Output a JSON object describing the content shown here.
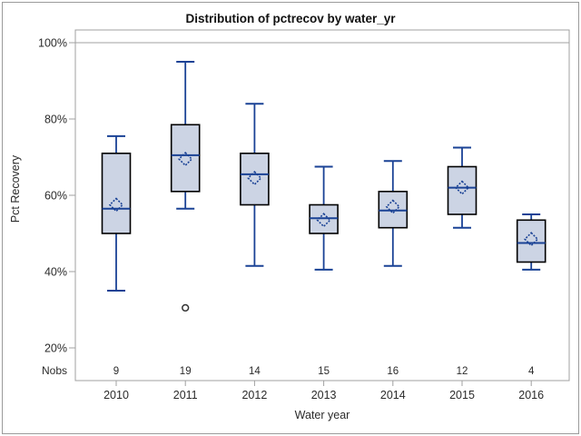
{
  "title": "Distribution of pctrecov by water_yr",
  "chart_data": {
    "type": "boxplot",
    "title": "Distribution of pctrecov by water_yr",
    "xlabel": "Water year",
    "ylabel": "Pct Recovery",
    "nobs_label": "Nobs",
    "y_ticks": [
      {
        "value": 100,
        "label": "100%"
      },
      {
        "value": 80,
        "label": "80%"
      },
      {
        "value": 60,
        "label": "60%"
      },
      {
        "value": 40,
        "label": "40%"
      },
      {
        "value": 20,
        "label": "20%"
      }
    ],
    "ylim": [
      12,
      103
    ],
    "reference_line_value": 100,
    "grid": "off",
    "categories": [
      "2010",
      "2011",
      "2012",
      "2013",
      "2014",
      "2015",
      "2016"
    ],
    "nobs": [
      9,
      19,
      14,
      15,
      16,
      12,
      4
    ],
    "series": [
      {
        "category": "2010",
        "whisker_low": 35,
        "q1": 50,
        "median": 56.5,
        "mean": 57.5,
        "q3": 71,
        "whisker_high": 75.5,
        "outliers": []
      },
      {
        "category": "2011",
        "whisker_low": 56.5,
        "q1": 61,
        "median": 70.5,
        "mean": 69.5,
        "q3": 78.5,
        "whisker_high": 95,
        "outliers": [
          30.5
        ]
      },
      {
        "category": "2012",
        "whisker_low": 41.5,
        "q1": 57.5,
        "median": 65.5,
        "mean": 64.5,
        "q3": 71,
        "whisker_high": 84,
        "outliers": []
      },
      {
        "category": "2013",
        "whisker_low": 40.5,
        "q1": 50,
        "median": 54,
        "mean": 53.5,
        "q3": 57.5,
        "whisker_high": 67.5,
        "outliers": []
      },
      {
        "category": "2014",
        "whisker_low": 41.5,
        "q1": 51.5,
        "median": 56,
        "mean": 57,
        "q3": 61,
        "whisker_high": 69,
        "outliers": []
      },
      {
        "category": "2015",
        "whisker_low": 51.5,
        "q1": 55,
        "median": 62,
        "mean": 62,
        "q3": 67.5,
        "whisker_high": 72.5,
        "outliers": []
      },
      {
        "category": "2016",
        "whisker_low": 40.5,
        "q1": 42.5,
        "median": 47.5,
        "mean": 48.5,
        "q3": 53.5,
        "whisker_high": 55,
        "outliers": []
      }
    ],
    "colors": {
      "box_fill": "#ccd4e4",
      "box_border": "#000000",
      "line_blue": "#1a4295",
      "frame_gray": "#a0a0a0",
      "text": "#2b2b2b",
      "outlier": "#333333"
    }
  }
}
